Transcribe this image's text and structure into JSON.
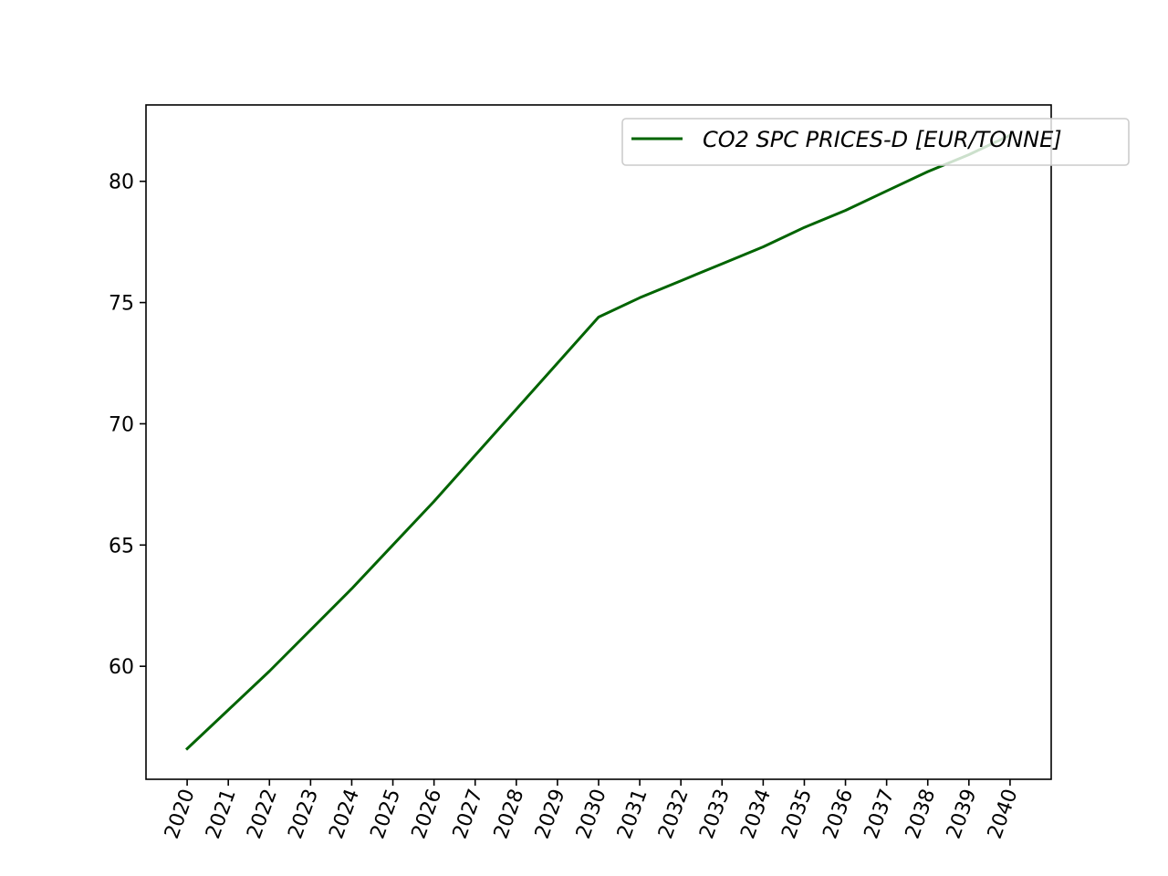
{
  "chart_data": {
    "type": "line",
    "x": [
      2020,
      2021,
      2022,
      2023,
      2024,
      2025,
      2026,
      2027,
      2028,
      2029,
      2030,
      2031,
      2032,
      2033,
      2034,
      2035,
      2036,
      2037,
      2038,
      2039,
      2040
    ],
    "x_tick_labels": [
      "2020",
      "2021",
      "2022",
      "2023",
      "2024",
      "2025",
      "2026",
      "2027",
      "2028",
      "2029",
      "2030",
      "2031",
      "2032",
      "2033",
      "2034",
      "2035",
      "2036",
      "2037",
      "2038",
      "2039",
      "2040"
    ],
    "series": [
      {
        "name": "CO2 SPC PRICES-D [EUR/TONNE]",
        "color": "#006400",
        "values": [
          56.6,
          58.2,
          59.8,
          61.5,
          63.2,
          65.0,
          66.8,
          68.7,
          70.6,
          72.5,
          74.4,
          75.2,
          75.9,
          76.6,
          77.3,
          78.1,
          78.8,
          79.6,
          80.4,
          81.1,
          81.9
        ]
      }
    ],
    "y_ticks": [
      60,
      65,
      70,
      75,
      80
    ],
    "y_tick_labels": [
      "60",
      "65",
      "70",
      "75",
      "80"
    ],
    "ylim": [
      55.34,
      83.15
    ],
    "xlim": [
      2019,
      2041
    ],
    "grid": false,
    "legend_position": "upper right",
    "x_tick_rotation_deg": 70
  }
}
